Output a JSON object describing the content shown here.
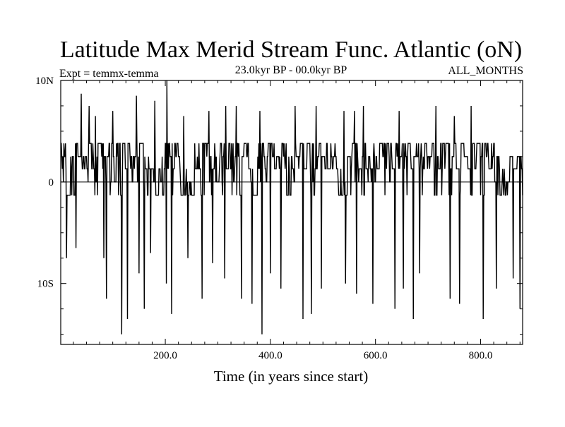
{
  "chart_data": {
    "type": "line",
    "title": "Latitude Max Merid Stream Func. Atlantic (oN)",
    "subtitle_left": "Expt = temmx-temma",
    "subtitle_center": "23.0kyr BP - 00.0kyr BP",
    "subtitle_right": "ALL_MONTHS",
    "xlabel": "Time (in years since start)",
    "ylabel": "",
    "xlim": [
      1,
      880
    ],
    "ylim": [
      -16,
      10
    ],
    "x_ticks": [
      {
        "value": 200,
        "label": "200.0"
      },
      {
        "value": 400,
        "label": "400.0"
      },
      {
        "value": 600,
        "label": "600.0"
      },
      {
        "value": 800,
        "label": "800.0"
      }
    ],
    "y_ticks": [
      {
        "value": 10,
        "label": "10N"
      },
      {
        "value": 0,
        "label": "0"
      },
      {
        "value": -10,
        "label": "10S"
      }
    ],
    "zero_line": 0,
    "series": [
      {
        "name": "latitude_max",
        "color": "#000000",
        "x_start": 1,
        "x_step": 1,
        "levels": [
          -1.3,
          0,
          1.3,
          2.5,
          3.8
        ],
        "level_weights": [
          2,
          1,
          3,
          4,
          4
        ],
        "spikes_up": [
          [
            40,
            8.7
          ],
          [
            55,
            7.5
          ],
          [
            67,
            6.5
          ],
          [
            100,
            7.0
          ],
          [
            145,
            8.5
          ],
          [
            180,
            8.0
          ],
          [
            203,
            10.0
          ],
          [
            235,
            6.5
          ],
          [
            283,
            7.0
          ],
          [
            315,
            7.5
          ],
          [
            335,
            7.5
          ],
          [
            380,
            7.0
          ],
          [
            447,
            7.5
          ],
          [
            487,
            7.5
          ],
          [
            540,
            7.0
          ],
          [
            560,
            7.0
          ],
          [
            577,
            7.5
          ],
          [
            645,
            7.0
          ],
          [
            672,
            10.0
          ],
          [
            715,
            7.5
          ],
          [
            750,
            6.5
          ],
          [
            782,
            7.5
          ]
        ],
        "spikes_down": [
          [
            12,
            -7.5
          ],
          [
            30,
            -6.5
          ],
          [
            83,
            -7.5
          ],
          [
            88,
            -11.5
          ],
          [
            117,
            -15.0
          ],
          [
            128,
            -13.5
          ],
          [
            150,
            -9.0
          ],
          [
            160,
            -12.5
          ],
          [
            172,
            -7.0
          ],
          [
            202,
            -10.0
          ],
          [
            212,
            -13.0
          ],
          [
            243,
            -7.5
          ],
          [
            270,
            -11.5
          ],
          [
            290,
            -8.0
          ],
          [
            313,
            -9.5
          ],
          [
            345,
            -11.5
          ],
          [
            365,
            -12.0
          ],
          [
            384,
            -15.0
          ],
          [
            400,
            -9.0
          ],
          [
            420,
            -10.5
          ],
          [
            462,
            -13.5
          ],
          [
            478,
            -13.0
          ],
          [
            497,
            -10.5
          ],
          [
            543,
            -10.0
          ],
          [
            564,
            -11.0
          ],
          [
            595,
            -12.0
          ],
          [
            637,
            -12.5
          ],
          [
            653,
            -10.5
          ],
          [
            672,
            -13.5
          ],
          [
            684,
            -9.0
          ],
          [
            742,
            -11.5
          ],
          [
            760,
            -12.0
          ],
          [
            805,
            -13.5
          ],
          [
            830,
            -10.5
          ],
          [
            862,
            -9.5
          ],
          [
            875,
            -12.5
          ]
        ],
        "quiet_spans": [
          [
            229,
            252
          ],
          [
            529,
            545
          ],
          [
            836,
            852
          ]
        ]
      }
    ]
  }
}
